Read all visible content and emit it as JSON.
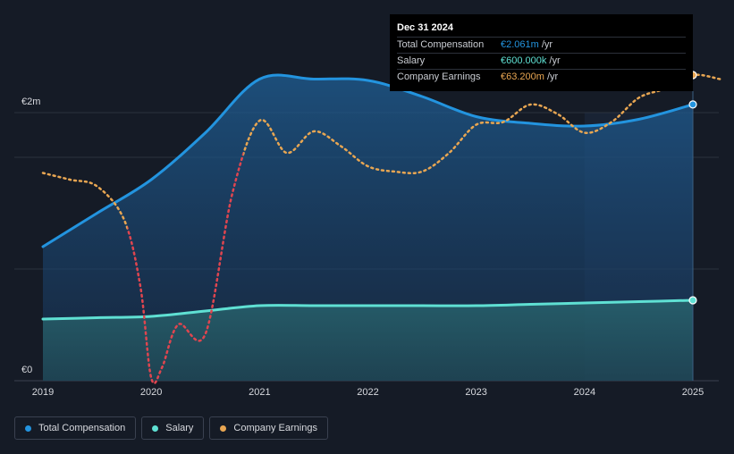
{
  "chart_data": {
    "type": "line",
    "x_range": [
      2019.0,
      2025.25
    ],
    "ylim": [
      0,
      2.4
    ],
    "y_tick_labels": [
      {
        "label": "€2m",
        "value": 2.0
      },
      {
        "label": "€0",
        "value": 0
      }
    ],
    "x_tick_labels": [
      {
        "label": "2019",
        "value": 2019
      },
      {
        "label": "2020",
        "value": 2020
      },
      {
        "label": "2021",
        "value": 2021
      },
      {
        "label": "2022",
        "value": 2022
      },
      {
        "label": "2023",
        "value": 2023
      },
      {
        "label": "2024",
        "value": 2024
      },
      {
        "label": "2025",
        "value": 2025
      }
    ],
    "highlight_from": 2024.0,
    "highlight_to": 2025.0,
    "series": [
      {
        "name": "Total Compensation",
        "key": "total",
        "color": "#2394df",
        "style": "solid",
        "area": true,
        "points": [
          [
            2019.0,
            1.0
          ],
          [
            2019.5,
            1.25
          ],
          [
            2020.0,
            1.5
          ],
          [
            2020.5,
            1.85
          ],
          [
            2021.0,
            2.25
          ],
          [
            2021.5,
            2.25
          ],
          [
            2022.0,
            2.24
          ],
          [
            2022.5,
            2.12
          ],
          [
            2023.0,
            1.97
          ],
          [
            2023.5,
            1.92
          ],
          [
            2024.0,
            1.9
          ],
          [
            2024.5,
            1.95
          ],
          [
            2025.0,
            2.061
          ]
        ]
      },
      {
        "name": "Salary",
        "key": "salary",
        "color": "#5fe0d3",
        "style": "solid",
        "area": true,
        "points": [
          [
            2019.0,
            0.46
          ],
          [
            2019.5,
            0.47
          ],
          [
            2020.0,
            0.48
          ],
          [
            2020.5,
            0.52
          ],
          [
            2021.0,
            0.56
          ],
          [
            2021.5,
            0.56
          ],
          [
            2022.0,
            0.56
          ],
          [
            2022.5,
            0.56
          ],
          [
            2023.0,
            0.56
          ],
          [
            2023.5,
            0.57
          ],
          [
            2024.0,
            0.58
          ],
          [
            2024.5,
            0.59
          ],
          [
            2025.0,
            0.6
          ]
        ]
      },
      {
        "name": "Company Earnings",
        "key": "earnings",
        "color": "#e8a652",
        "style": "dotted",
        "area": false,
        "points": [
          [
            2019.0,
            1.55
          ],
          [
            2019.25,
            1.5
          ],
          [
            2019.5,
            1.45
          ],
          [
            2019.75,
            1.2
          ],
          [
            2019.9,
            0.7
          ],
          [
            2020.0,
            0.02
          ],
          [
            2020.1,
            0.1
          ],
          [
            2020.25,
            0.42
          ],
          [
            2020.5,
            0.35
          ],
          [
            2020.75,
            1.4
          ],
          [
            2021.0,
            1.94
          ],
          [
            2021.25,
            1.7
          ],
          [
            2021.5,
            1.86
          ],
          [
            2021.75,
            1.75
          ],
          [
            2022.0,
            1.6
          ],
          [
            2022.25,
            1.56
          ],
          [
            2022.5,
            1.56
          ],
          [
            2022.75,
            1.7
          ],
          [
            2023.0,
            1.91
          ],
          [
            2023.25,
            1.93
          ],
          [
            2023.5,
            2.06
          ],
          [
            2023.75,
            1.99
          ],
          [
            2024.0,
            1.85
          ],
          [
            2024.25,
            1.93
          ],
          [
            2024.5,
            2.11
          ],
          [
            2024.75,
            2.18
          ],
          [
            2025.0,
            2.28
          ],
          [
            2025.25,
            2.25
          ]
        ]
      }
    ]
  },
  "tooltip": {
    "date": "Dec 31 2024",
    "rows": [
      {
        "label": "Total Compensation",
        "value": "€2.061m",
        "unit": "/yr",
        "color": "#2394df"
      },
      {
        "label": "Salary",
        "value": "€600.000k",
        "unit": "/yr",
        "color": "#5fe0d3"
      },
      {
        "label": "Company Earnings",
        "value": "€63.200m",
        "unit": "/yr",
        "color": "#e8a652"
      }
    ]
  },
  "legend": [
    {
      "label": "Total Compensation",
      "color": "#2394df"
    },
    {
      "label": "Salary",
      "color": "#5fe0d3"
    },
    {
      "label": "Company Earnings",
      "color": "#e8a652"
    }
  ]
}
